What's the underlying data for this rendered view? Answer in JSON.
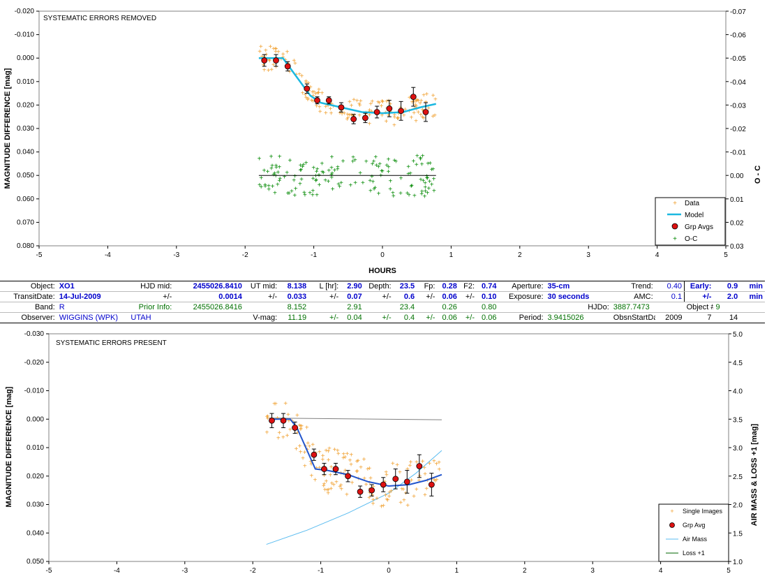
{
  "colors": {
    "data": "#f0a030",
    "model": "#1cb8e0",
    "model_bottom": "#2255cc",
    "grp_avg": "#dd1111",
    "oc": "#008800",
    "air_mass": "#5bbcf0",
    "loss": "#006600",
    "zero_line": "#000000",
    "gray_line": "#808080"
  },
  "chart_data": [
    {
      "type": "scatter",
      "title": "SYSTEMATIC ERRORS REMOVED",
      "xlabel": "HOURS",
      "ylabel": "MAGNITUDE DIFFERENCE  [mag]",
      "y2label": "O - C",
      "xlim": [
        -5,
        5
      ],
      "ylim": [
        -0.02,
        0.08
      ],
      "y_inverted": true,
      "y2lim": [
        -0.07,
        0.03
      ],
      "x_ticks": [
        "-5",
        "-4",
        "-3",
        "-2",
        "-1",
        "0",
        "1",
        "2",
        "3",
        "4",
        "5"
      ],
      "y_ticks": [
        "-0.020",
        "-0.010",
        "0.000",
        "0.010",
        "0.020",
        "0.030",
        "0.040",
        "0.050",
        "0.060",
        "0.070",
        "0.080"
      ],
      "y2_ticks": [
        "-0.07",
        "-0.06",
        "-0.05",
        "-0.04",
        "-0.03",
        "-0.02",
        "-0.01",
        "0.00",
        "0.01",
        "0.02",
        "0.03"
      ],
      "legend": [
        "Data",
        "Model",
        "Grp Avgs",
        "O-C"
      ],
      "legend_position": "bottom-right",
      "model": {
        "x": [
          -1.8,
          -1.45,
          -1.35,
          -1.05,
          -0.9,
          -0.6,
          -0.3,
          0.0,
          0.3,
          0.55,
          0.78
        ],
        "y": [
          0.0,
          0.0,
          0.004,
          0.016,
          0.019,
          0.021,
          0.023,
          0.0235,
          0.023,
          0.021,
          0.0195
        ]
      },
      "grp_avgs": {
        "x": [
          -1.72,
          -1.55,
          -1.38,
          -1.1,
          -0.95,
          -0.78,
          -0.6,
          -0.42,
          -0.25,
          -0.08,
          0.1,
          0.27,
          0.45,
          0.63
        ],
        "y": [
          0.001,
          0.001,
          0.0035,
          0.013,
          0.018,
          0.018,
          0.021,
          0.026,
          0.0255,
          0.023,
          0.0215,
          0.0225,
          0.0165,
          0.023
        ],
        "err": [
          0.0025,
          0.0025,
          0.002,
          0.002,
          0.0015,
          0.0015,
          0.002,
          0.002,
          0.002,
          0.0025,
          0.0035,
          0.004,
          0.004,
          0.004
        ]
      },
      "oc_zero": 0.0
    },
    {
      "type": "scatter",
      "title": "SYSTEMATIC ERRORS PRESENT",
      "xlabel": "",
      "ylabel": "MAGNITUDE DIFFERENCE  [mag]",
      "y2label": "AIR MASS & LOSS +1  [mag]",
      "xlim": [
        -5,
        5
      ],
      "ylim": [
        -0.03,
        0.05
      ],
      "y_inverted": true,
      "y2lim": [
        1.0,
        5.0
      ],
      "x_ticks": [
        "-5",
        "-4",
        "-3",
        "-2",
        "-1",
        "0",
        "1",
        "2",
        "3",
        "4",
        "5"
      ],
      "y_ticks": [
        "-0.030",
        "-0.020",
        "-0.010",
        "0.000",
        "0.010",
        "0.020",
        "0.030",
        "0.040",
        "0.050"
      ],
      "y2_ticks": [
        "5.0",
        "4.5",
        "4.0",
        "3.5",
        "3.0",
        "2.5",
        "2.0",
        "1.5",
        "1.0"
      ],
      "legend": [
        "Single Images",
        "Grp Avg",
        "Air Mass",
        "Loss +1"
      ],
      "legend_position": "bottom-right",
      "model": {
        "x": [
          -1.75,
          -1.45,
          -1.35,
          -1.08,
          -0.9,
          -0.6,
          -0.3,
          0.0,
          0.3,
          0.55,
          0.78
        ],
        "y": [
          0.0,
          0.0,
          0.003,
          0.0175,
          0.018,
          0.0195,
          0.022,
          0.0235,
          0.023,
          0.0215,
          0.0195
        ]
      },
      "grp_avgs": {
        "x": [
          -1.72,
          -1.55,
          -1.38,
          -1.1,
          -0.95,
          -0.78,
          -0.6,
          -0.42,
          -0.25,
          -0.08,
          0.1,
          0.27,
          0.45,
          0.63
        ],
        "y": [
          0.0005,
          0.0005,
          0.003,
          0.0125,
          0.0175,
          0.0175,
          0.02,
          0.0255,
          0.025,
          0.023,
          0.021,
          0.022,
          0.0165,
          0.023
        ],
        "err": [
          0.0025,
          0.0025,
          0.002,
          0.002,
          0.002,
          0.002,
          0.002,
          0.002,
          0.002,
          0.0025,
          0.0035,
          0.004,
          0.004,
          0.004
        ]
      },
      "air_mass": {
        "x": [
          -1.8,
          -1.2,
          -0.6,
          0.0,
          0.4,
          0.78
        ],
        "y": [
          1.3,
          1.55,
          1.85,
          2.2,
          2.55,
          2.95
        ]
      },
      "loss": {
        "x": [
          -1.8,
          0.78
        ],
        "y": [
          3.52,
          3.49
        ]
      }
    }
  ],
  "info_table": {
    "rows": [
      [
        "Object:",
        "XO1",
        "HJD mid:",
        "2455026.8410",
        "UT mid:",
        "8.138",
        "L [hr]:",
        "2.90",
        "Depth:",
        "23.5",
        "Fp:",
        "0.28",
        "F2:",
        "0.74",
        "Aperture:",
        "35-cm",
        "Trend:",
        "0.40",
        "Early:",
        "0.9",
        "min"
      ],
      [
        "TransitDate:",
        "14-Jul-2009",
        "+/-",
        "0.0014",
        "+/-",
        "0.033",
        "+/-",
        "0.07",
        "+/-",
        "0.6",
        "+/-",
        "0.06",
        "+/-",
        "0.10",
        "Exposure:",
        "30 seconds",
        "AMC:",
        "0.1",
        "+/-",
        "2.0",
        "min"
      ],
      [
        "Band:",
        "R",
        "Prior Info:",
        "2455026.8416",
        "",
        "8.152",
        "",
        "2.91",
        "",
        "23.4",
        "",
        "0.26",
        "",
        "0.80",
        "",
        "HJDo:",
        "3887.7473",
        "",
        "Object #:",
        "9",
        "",
        ""
      ],
      [
        "Observer:",
        "WIGGINS (WPK)",
        "UTAH",
        "",
        "V-mag:",
        "11.19",
        "+/-",
        "0.04",
        "+/-",
        "0.4",
        "+/-",
        "0.06",
        "+/-",
        "0.06",
        "Period:",
        "3.9415026",
        "ObsnStartDate:",
        "2009",
        "7",
        "14"
      ]
    ]
  }
}
